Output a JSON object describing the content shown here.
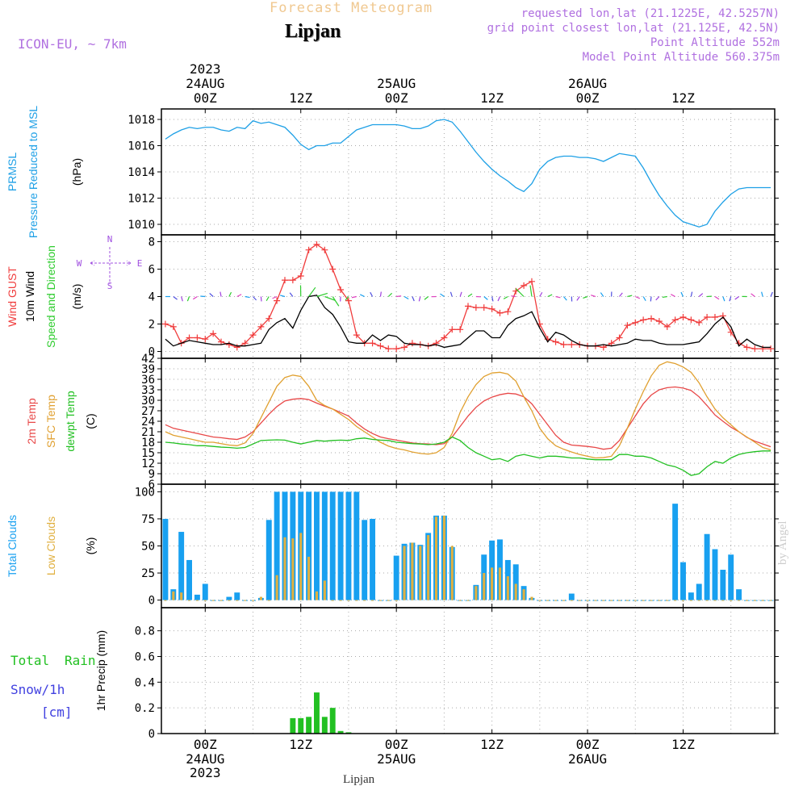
{
  "header": {
    "product": "Forecast Meteogram",
    "location": "Lipjan",
    "model": "ICON-EU, ~ 7km",
    "requested": "requested lon,lat (21.1225E, 42.5257N)",
    "grid_point": "grid point closest lon,lat (21.125E, 42.5N)",
    "point_altitude": "Point Altitude 552m",
    "model_altitude": "Model Point Altitude 560.375m",
    "credit": "by Angel",
    "footer_location": "Lipjan"
  },
  "time_axis": {
    "year": "2023",
    "day_labels": [
      {
        "hour": 0,
        "day": "24AUG",
        "time": "00Z"
      },
      {
        "hour": 12,
        "day": "",
        "time": "12Z"
      },
      {
        "hour": 24,
        "day": "25AUG",
        "time": "00Z"
      },
      {
        "hour": 36,
        "day": "",
        "time": "12Z"
      },
      {
        "hour": 48,
        "day": "26AUG",
        "time": "00Z"
      },
      {
        "hour": 60,
        "day": "",
        "time": "12Z"
      }
    ]
  },
  "colors": {
    "pressure": "#1ea0e6",
    "gust": "#f03c3c",
    "wind": "#000000",
    "wind_dir": "#2ecc2e",
    "temp2m": "#e84848",
    "sfctemp": "#e0a030",
    "dewpt": "#22c022",
    "total_clouds": "#18a0f0",
    "low_clouds": "#e0b040",
    "rain": "#22c022",
    "snow": "#4040e0",
    "purple": "#a050e0",
    "grid": "#aaaaaa"
  },
  "chart_data": [
    {
      "type": "line",
      "panel": "pressure",
      "ylabel_lines": [
        "PRMSL",
        "Pressure Reduced to MSL",
        "(hPa)"
      ],
      "yticks": [
        1010,
        1012,
        1014,
        1016,
        1018
      ],
      "ylim": [
        1009.2,
        1018.8
      ],
      "hours": [
        -5,
        -4,
        -3,
        -2,
        -1,
        0,
        1,
        2,
        3,
        4,
        5,
        6,
        7,
        8,
        9,
        10,
        11,
        12,
        13,
        14,
        15,
        16,
        17,
        18,
        19,
        20,
        21,
        22,
        23,
        24,
        25,
        26,
        27,
        28,
        29,
        30,
        31,
        32,
        33,
        34,
        35,
        36,
        37,
        38,
        39,
        40,
        41,
        42,
        43,
        44,
        45,
        46,
        47,
        48,
        49,
        50,
        51,
        52,
        53,
        54,
        55,
        56,
        57,
        58,
        59,
        60,
        61,
        62,
        63,
        64,
        65,
        66,
        67,
        68,
        69,
        70,
        71
      ],
      "series": [
        {
          "name": "Pressure Reduced to MSL",
          "values": [
            1016.5,
            1016.9,
            1017.2,
            1017.4,
            1017.3,
            1017.4,
            1017.4,
            1017.2,
            1017.1,
            1017.4,
            1017.3,
            1017.9,
            1017.7,
            1017.8,
            1017.6,
            1017.4,
            1016.8,
            1016.1,
            1015.7,
            1016.0,
            1016.0,
            1016.2,
            1016.2,
            1016.7,
            1017.2,
            1017.4,
            1017.6,
            1017.6,
            1017.6,
            1017.6,
            1017.5,
            1017.3,
            1017.3,
            1017.5,
            1017.9,
            1018.0,
            1017.8,
            1017.1,
            1016.3,
            1015.5,
            1014.8,
            1014.2,
            1013.7,
            1013.3,
            1012.8,
            1012.5,
            1013.1,
            1014.2,
            1014.8,
            1015.1,
            1015.2,
            1015.2,
            1015.1,
            1015.1,
            1015.0,
            1014.8,
            1015.1,
            1015.4,
            1015.3,
            1015.2,
            1014.3,
            1013.2,
            1012.2,
            1011.4,
            1010.7,
            1010.2,
            1010.0,
            1009.8,
            1010.0,
            1011.0,
            1011.7,
            1012.3,
            1012.7,
            1012.8,
            1012.8,
            1012.8,
            1012.8
          ]
        }
      ]
    },
    {
      "type": "line",
      "panel": "wind",
      "ylabel_lines": [
        "Wind GUST",
        "10m Wind",
        "Speed and Direction",
        "(m/s)"
      ],
      "compass": {
        "n": "N",
        "s": "S",
        "w": "W",
        "e": "E"
      },
      "yticks": [
        0,
        2,
        4,
        6,
        8
      ],
      "ylim": [
        -0.5,
        8.5
      ],
      "hours": [
        -5,
        -4,
        -3,
        -2,
        -1,
        0,
        1,
        2,
        3,
        4,
        5,
        6,
        7,
        8,
        9,
        10,
        11,
        12,
        13,
        14,
        15,
        16,
        17,
        18,
        19,
        20,
        21,
        22,
        23,
        24,
        25,
        26,
        27,
        28,
        29,
        30,
        31,
        32,
        33,
        34,
        35,
        36,
        37,
        38,
        39,
        40,
        41,
        42,
        43,
        44,
        45,
        46,
        47,
        48,
        49,
        50,
        51,
        52,
        53,
        54,
        55,
        56,
        57,
        58,
        59,
        60,
        61,
        62,
        63,
        64,
        65,
        66,
        67,
        68,
        69,
        70,
        71
      ],
      "series": [
        {
          "name": "Wind GUST",
          "values": [
            2.0,
            1.8,
            0.6,
            1.0,
            1.0,
            0.9,
            1.3,
            0.7,
            0.5,
            0.3,
            0.6,
            1.2,
            1.8,
            2.4,
            3.7,
            5.2,
            5.2,
            5.5,
            7.4,
            7.8,
            7.4,
            6.0,
            4.5,
            3.7,
            1.2,
            0.6,
            0.6,
            0.4,
            0.2,
            0.2,
            0.3,
            0.6,
            0.5,
            0.4,
            0.6,
            1.0,
            1.6,
            1.6,
            3.3,
            3.2,
            3.2,
            3.1,
            2.8,
            2.9,
            4.4,
            4.8,
            5.1,
            2.0,
            0.9,
            0.7,
            0.5,
            0.5,
            0.5,
            0.4,
            0.4,
            0.3,
            0.6,
            1.0,
            1.9,
            2.1,
            2.3,
            2.4,
            2.2,
            1.8,
            2.3,
            2.5,
            2.3,
            2.1,
            2.5,
            2.5,
            2.6,
            1.4,
            0.6,
            0.3,
            0.2,
            0.2,
            0.2
          ]
        },
        {
          "name": "10m Wind",
          "values": [
            0.9,
            0.4,
            0.6,
            0.8,
            0.7,
            0.6,
            0.5,
            0.5,
            0.6,
            0.4,
            0.4,
            0.5,
            0.6,
            1.6,
            2.1,
            2.4,
            1.7,
            3.0,
            4.0,
            4.1,
            3.2,
            2.7,
            1.8,
            0.7,
            0.6,
            0.6,
            1.2,
            0.8,
            1.2,
            1.1,
            0.6,
            0.5,
            0.5,
            0.4,
            0.5,
            0.3,
            0.4,
            0.5,
            1.0,
            1.5,
            1.5,
            1.0,
            1.0,
            1.9,
            2.4,
            2.6,
            2.9,
            1.7,
            0.7,
            1.4,
            1.2,
            0.8,
            0.5,
            0.4,
            0.4,
            0.5,
            0.4,
            0.5,
            0.6,
            0.9,
            0.8,
            0.8,
            0.6,
            0.5,
            0.5,
            0.5,
            0.6,
            0.7,
            1.3,
            2.0,
            2.5,
            1.8,
            0.4,
            0.9,
            0.5,
            0.3,
            0.3
          ]
        }
      ]
    },
    {
      "type": "line",
      "panel": "temperature",
      "ylabel_lines": [
        "2m Temp",
        "SFC Temp",
        "dewpt Temp",
        "(C)"
      ],
      "yticks": [
        6,
        9,
        12,
        15,
        18,
        21,
        24,
        27,
        30,
        33,
        36,
        39,
        42
      ],
      "ylim": [
        6,
        42
      ],
      "hours": [
        -5,
        -4,
        -3,
        -2,
        -1,
        0,
        1,
        2,
        3,
        4,
        5,
        6,
        7,
        8,
        9,
        10,
        11,
        12,
        13,
        14,
        15,
        16,
        17,
        18,
        19,
        20,
        21,
        22,
        23,
        24,
        25,
        26,
        27,
        28,
        29,
        30,
        31,
        32,
        33,
        34,
        35,
        36,
        37,
        38,
        39,
        40,
        41,
        42,
        43,
        44,
        45,
        46,
        47,
        48,
        49,
        50,
        51,
        52,
        53,
        54,
        55,
        56,
        57,
        58,
        59,
        60,
        61,
        62,
        63,
        64,
        65,
        66,
        67,
        68,
        69,
        70,
        71
      ],
      "series": [
        {
          "name": "2m Temp",
          "values": [
            23.0,
            22.0,
            21.5,
            21.0,
            20.5,
            20.0,
            19.5,
            19.3,
            19.0,
            18.8,
            19.5,
            21.0,
            23.5,
            26.0,
            28.2,
            29.8,
            30.3,
            30.5,
            30.2,
            29.2,
            28.3,
            27.5,
            26.5,
            25.5,
            23.5,
            21.8,
            20.5,
            19.5,
            19.0,
            18.6,
            18.2,
            17.8,
            17.6,
            17.5,
            17.3,
            17.6,
            19.5,
            22.5,
            25.5,
            28.0,
            29.8,
            30.9,
            31.6,
            32.0,
            31.8,
            31.0,
            29.0,
            26.0,
            23.0,
            20.0,
            18.0,
            17.2,
            17.0,
            16.8,
            16.5,
            16.0,
            16.3,
            18.5,
            22.0,
            25.5,
            29.0,
            31.5,
            33.0,
            33.6,
            33.8,
            33.5,
            32.8,
            31.0,
            28.5,
            25.8,
            24.0,
            22.3,
            21.0,
            19.4,
            18.3,
            17.5,
            16.7
          ]
        },
        {
          "name": "SFC Temp",
          "values": [
            21.0,
            20.0,
            19.5,
            19.0,
            18.5,
            18.0,
            18.0,
            17.6,
            17.2,
            17.0,
            17.8,
            20.5,
            25.0,
            29.5,
            34.0,
            36.5,
            37.2,
            36.8,
            34.0,
            30.0,
            28.5,
            27.5,
            26.0,
            24.5,
            22.5,
            21.0,
            19.5,
            18.0,
            16.9,
            16.2,
            15.8,
            15.2,
            14.8,
            14.6,
            15.0,
            16.5,
            20.5,
            26.5,
            31.0,
            34.5,
            36.8,
            37.8,
            38.0,
            37.5,
            35.5,
            31.0,
            27.0,
            22.0,
            19.0,
            17.0,
            16.0,
            15.2,
            14.5,
            14.0,
            13.5,
            13.6,
            14.0,
            17.0,
            22.0,
            27.5,
            32.5,
            37.0,
            40.0,
            41.0,
            40.5,
            39.5,
            38.0,
            35.0,
            31.0,
            27.5,
            25.0,
            23.0,
            21.0,
            19.5,
            18.0,
            16.5,
            15.8
          ]
        },
        {
          "name": "dewpt Temp",
          "values": [
            18.0,
            17.8,
            17.5,
            17.3,
            17.0,
            17.0,
            16.8,
            16.6,
            16.5,
            16.3,
            16.5,
            17.5,
            18.5,
            18.6,
            18.7,
            18.6,
            18.0,
            17.5,
            18.0,
            18.5,
            18.3,
            18.5,
            18.6,
            18.5,
            19.0,
            19.2,
            18.8,
            18.6,
            18.5,
            18.0,
            17.8,
            17.6,
            17.5,
            17.3,
            17.5,
            18.0,
            19.5,
            18.5,
            16.5,
            15.0,
            14.0,
            13.0,
            13.3,
            12.5,
            14.0,
            14.5,
            14.0,
            13.5,
            14.0,
            14.0,
            13.8,
            13.5,
            13.5,
            13.2,
            13.0,
            13.0,
            13.0,
            14.5,
            14.5,
            14.0,
            14.0,
            13.5,
            12.5,
            11.5,
            11.0,
            10.0,
            8.5,
            9.0,
            11.0,
            12.5,
            12.0,
            13.5,
            14.5,
            15.0,
            15.3,
            15.5,
            15.5
          ]
        }
      ]
    },
    {
      "type": "bar",
      "panel": "clouds",
      "ylabel_lines": [
        "Total Clouds",
        "Low Clouds",
        "(%)"
      ],
      "yticks": [
        0,
        25,
        50,
        75,
        100
      ],
      "ylim": [
        -7,
        107
      ],
      "hours": [
        -5,
        -4,
        -3,
        -2,
        -1,
        0,
        1,
        2,
        3,
        4,
        5,
        6,
        7,
        8,
        9,
        10,
        11,
        12,
        13,
        14,
        15,
        16,
        17,
        18,
        19,
        20,
        21,
        22,
        23,
        24,
        25,
        26,
        27,
        28,
        29,
        30,
        31,
        32,
        33,
        34,
        35,
        36,
        37,
        38,
        39,
        40,
        41,
        42,
        43,
        44,
        45,
        46,
        47,
        48,
        49,
        50,
        51,
        52,
        53,
        54,
        55,
        56,
        57,
        58,
        59,
        60,
        61,
        62,
        63,
        64,
        65,
        66,
        67,
        68,
        69,
        70,
        71
      ],
      "series": [
        {
          "name": "Total Clouds",
          "values": [
            75,
            10,
            63,
            37,
            5,
            15,
            0,
            0,
            3,
            7,
            0,
            0,
            2,
            74,
            100,
            100,
            100,
            100,
            100,
            100,
            100,
            100,
            100,
            100,
            100,
            74,
            75,
            0,
            0,
            41,
            52,
            53,
            51,
            62,
            78,
            78,
            49,
            0,
            0,
            14,
            42,
            55,
            56,
            37,
            33,
            13,
            2,
            0,
            0,
            0,
            0,
            6,
            0,
            0,
            0,
            0,
            0,
            0,
            0,
            0,
            0,
            0,
            0,
            0,
            89,
            35,
            7,
            15,
            61,
            47,
            28,
            42,
            10,
            0,
            0,
            0,
            0
          ]
        },
        {
          "name": "Low Clouds",
          "values": [
            0,
            8,
            7,
            0,
            0,
            0,
            0,
            0,
            0,
            0,
            0,
            0,
            3,
            0,
            23,
            58,
            57,
            62,
            40,
            8,
            18,
            0,
            0,
            0,
            0,
            0,
            0,
            0,
            0,
            0,
            50,
            53,
            50,
            60,
            77,
            78,
            50,
            0,
            0,
            13,
            25,
            30,
            30,
            22,
            15,
            10,
            3,
            0,
            0,
            0,
            0,
            0,
            0,
            0,
            0,
            0,
            0,
            0,
            0,
            0,
            0,
            0,
            0,
            0,
            0,
            0,
            0,
            0,
            0,
            0,
            0,
            0,
            0,
            0,
            0,
            0,
            0
          ]
        }
      ]
    },
    {
      "type": "bar",
      "panel": "precip",
      "ylabel_lines": [
        "1hr Precip (mm)"
      ],
      "side_labels": [
        "Total",
        "Rain",
        "Snow/1h",
        "[cm]"
      ],
      "yticks": [
        0,
        0.2,
        0.4,
        0.6,
        0.8
      ],
      "ytick_labels": [
        "0",
        "0.2",
        "0.4",
        "0.6",
        "0.8"
      ],
      "ylim": [
        0,
        0.98
      ],
      "hours": [
        11,
        12,
        13,
        14,
        15,
        16,
        17,
        18
      ],
      "series": [
        {
          "name": "Total Rain",
          "values": [
            0.12,
            0.12,
            0.13,
            0.32,
            0.13,
            0.2,
            0.02,
            0.01
          ]
        }
      ]
    }
  ]
}
